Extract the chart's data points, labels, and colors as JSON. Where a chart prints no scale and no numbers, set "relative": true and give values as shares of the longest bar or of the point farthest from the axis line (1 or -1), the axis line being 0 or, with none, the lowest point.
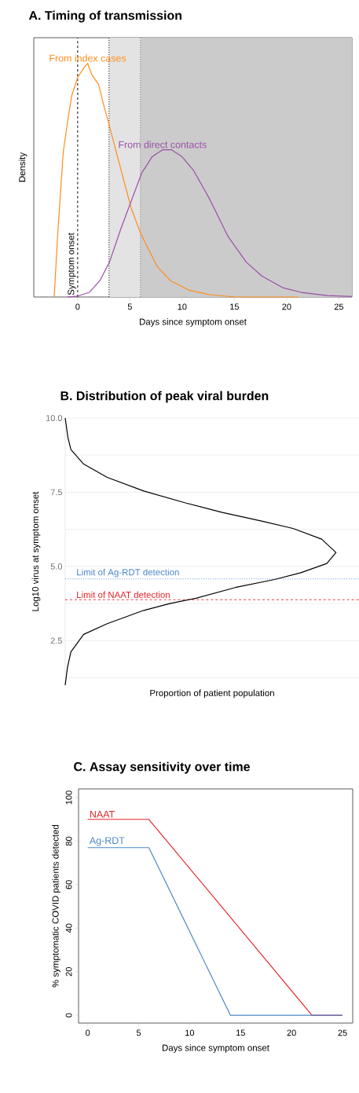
{
  "chart_data": [
    {
      "type": "line",
      "title": "A. Timing of transmission",
      "xlabel": "Days since symptom onset",
      "ylabel": "Density",
      "relative": true,
      "xlim": [
        -4.2,
        26.25
      ],
      "xticks": [
        0,
        5,
        10,
        15,
        20,
        25
      ],
      "series": [
        {
          "name": "From index cases",
          "color": "#ff8c1a",
          "x": [
            -2.25,
            -1.88,
            -1.38,
            -1.0,
            -0.58,
            0,
            0.58,
            0.95,
            1.38,
            2.0,
            2.5,
            3.05,
            3.88,
            5.12,
            6.05,
            7.62,
            8.88,
            10.62,
            12.62,
            15.12,
            21.12
          ],
          "values": [
            0,
            0.29,
            0.62,
            0.74,
            0.86,
            0.94,
            0.98,
            1.0,
            0.95,
            0.91,
            0.82,
            0.73,
            0.59,
            0.38,
            0.27,
            0.13,
            0.07,
            0.03,
            0.01,
            0,
            0
          ]
        },
        {
          "name": "From direct contacts",
          "color": "#9b4fa8",
          "x": [
            -1,
            0,
            1.12,
            2.12,
            3.05,
            4.12,
            5.12,
            6.12,
            7.12,
            8.12,
            9,
            10,
            11.12,
            12.62,
            14.38,
            16.12,
            17.62,
            19.62,
            21.38,
            23.88,
            26.25
          ],
          "values": [
            0,
            0.004,
            0.02,
            0.07,
            0.15,
            0.29,
            0.41,
            0.53,
            0.6,
            0.63,
            0.63,
            0.6,
            0.54,
            0.42,
            0.26,
            0.15,
            0.09,
            0.04,
            0.02,
            0.006,
            0.002
          ]
        }
      ],
      "bands": [
        {
          "axis": "x",
          "from": 3,
          "to": 6,
          "color": "#e3e3e3"
        },
        {
          "axis": "x",
          "from": 6,
          "to": 26.25,
          "color": "#cbcbcb"
        }
      ],
      "ref_lines": [
        {
          "axis": "x",
          "value": 0,
          "label": "Symptom onset",
          "color": "#000000",
          "line_style": "dashed"
        },
        {
          "axis": "x",
          "value": 3,
          "color": "#000000",
          "line_style": "dotted"
        },
        {
          "axis": "x",
          "value": 6,
          "color": "#777777",
          "line_style": "dotted"
        }
      ]
    },
    {
      "type": "line",
      "title": "B. Distribution of peak viral burden",
      "xlabel": "Proportion of patient population",
      "ylabel": "Log10 virus at symptom onset",
      "grid": "y",
      "orientation": "horizontal",
      "relative": true,
      "ylim": [
        1.0,
        10.0
      ],
      "yticks": [
        {
          "value": 1.25,
          "label": null
        },
        {
          "value": 2.5,
          "label": "2.5"
        },
        {
          "value": 3.75,
          "label": null
        },
        {
          "value": 5,
          "label": "5.0"
        },
        {
          "value": 6.25,
          "label": null
        },
        {
          "value": 7.5,
          "label": "7.5"
        },
        {
          "value": 8.75,
          "label": null
        },
        {
          "value": 10,
          "label": "10.0"
        }
      ],
      "series": [
        {
          "color": "#000000",
          "values": [
            0,
            0.01,
            0.021,
            0.068,
            0.155,
            0.29,
            0.444,
            0.58,
            0.725,
            0.841,
            0.947,
            1.0,
            0.966,
            0.87,
            0.773,
            0.628,
            0.483,
            0.386,
            0.29,
            0.155,
            0.068,
            0.021,
            0.008,
            0
          ],
          "x": [
            10.0,
            9.35,
            8.94,
            8.45,
            8.0,
            7.54,
            7.14,
            6.82,
            6.53,
            6.28,
            5.92,
            5.47,
            5.1,
            4.79,
            4.56,
            4.29,
            3.93,
            3.75,
            3.52,
            3.07,
            2.71,
            2.12,
            1.58,
            1.0
          ]
        }
      ],
      "ref_lines": [
        {
          "axis": "y",
          "value": 4.58,
          "label": "Limit of Ag-RDT detection",
          "color": "#4a86c8",
          "line_style": "dotted"
        },
        {
          "axis": "y",
          "value": 3.88,
          "label": "Limit of NAAT detection",
          "color": "#e8242a",
          "line_style": "dashed"
        }
      ]
    },
    {
      "type": "line",
      "title": "C. Assay sensitivity over time",
      "xlabel": "Days since symptom onset",
      "ylabel": "% symptomatic COVID patients detected",
      "xlim": [
        -0.9,
        26
      ],
      "ylim": [
        -3.6,
        104
      ],
      "xticks": [
        0,
        5,
        10,
        15,
        20,
        25
      ],
      "yticks": [
        0,
        20,
        40,
        60,
        80,
        100
      ],
      "series": [
        {
          "name": "NAAT",
          "color": "#e8242a",
          "x": [
            0,
            6,
            22,
            25
          ],
          "values": [
            90,
            90,
            0,
            0
          ]
        },
        {
          "name": "Ag-RDT",
          "color": "#4a86c8",
          "x": [
            0,
            6,
            14,
            25
          ],
          "values": [
            77,
            77,
            0,
            0
          ]
        }
      ]
    }
  ]
}
